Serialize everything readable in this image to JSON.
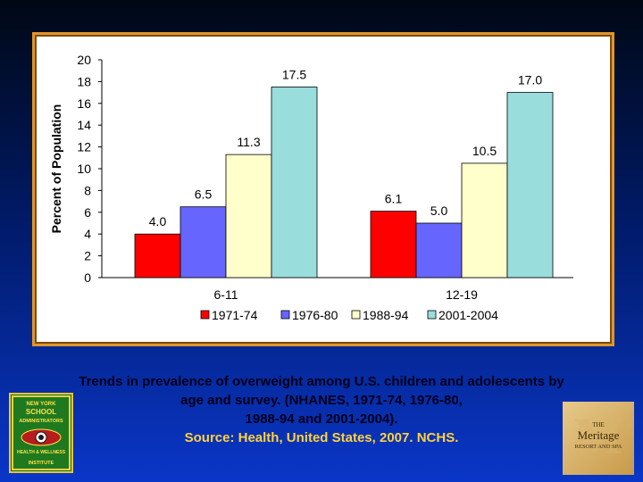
{
  "chart_data": {
    "type": "bar",
    "categories": [
      "6-11",
      "12-19"
    ],
    "series": [
      {
        "name": "1971-74",
        "values": [
          4.0,
          6.1
        ],
        "color": "#ff0000"
      },
      {
        "name": "1976-80",
        "values": [
          6.5,
          5.0
        ],
        "color": "#6666ff"
      },
      {
        "name": "1988-94",
        "values": [
          11.3,
          10.5
        ],
        "color": "#ffffcc"
      },
      {
        "name": "2001-2004",
        "values": [
          17.5,
          17.0
        ],
        "color": "#99dddd"
      }
    ],
    "value_labels": [
      [
        "4.0",
        "6.5",
        "11.3",
        "17.5"
      ],
      [
        "6.1",
        "5.0",
        "10.5",
        "17.0"
      ]
    ],
    "ylabel": "Percent of Population",
    "xlabel": "",
    "yticks": [
      0,
      2,
      4,
      6,
      8,
      10,
      12,
      14,
      16,
      18,
      20
    ],
    "ylim": [
      0,
      20
    ],
    "legend_position": "bottom"
  },
  "caption": {
    "line1": "Trends in prevalence of overweight among U.S. children and adolescents by",
    "line2": "age and survey. (NHANES, 1971-74, 1976-80,",
    "line3": "1988-94 and 2001-2004).",
    "source": "Source: Health, United States, 2007. NCHS."
  },
  "logo_left": {
    "line1": "NEW YORK",
    "line2": "SCHOOL",
    "line3": "ADMINISTRATORS",
    "line4": "HEALTH & WELLNESS",
    "line5": "INSTITUTE"
  },
  "logo_right": {
    "line1": "THE",
    "line2": "Meritage",
    "line3": "RESORT AND SPA"
  },
  "colors": {
    "frame": "#e0962a",
    "caption_text": "#00001a",
    "source_text": "#ffd23a"
  }
}
